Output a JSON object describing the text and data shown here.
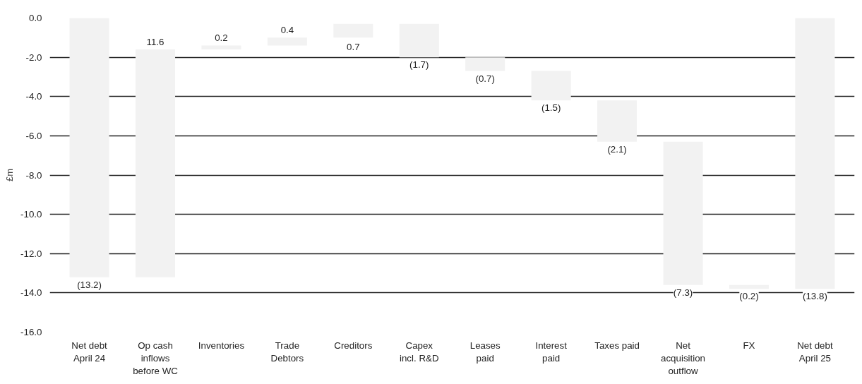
{
  "chart_data": {
    "type": "bar",
    "ylabel": "£m",
    "categories": [
      "Net debt April 24",
      "Op cash inflows before WC",
      "Inventories",
      "Trade Debtors",
      "Creditors",
      "Capex incl. R&D",
      "Leases paid",
      "Interest paid",
      "Taxes paid",
      "Net acquisition outflow",
      "FX",
      "Net debt April 25"
    ],
    "values": [
      -13.2,
      11.6,
      0.2,
      0.4,
      0.7,
      -1.7,
      -0.7,
      -1.5,
      -2.1,
      -7.3,
      -0.2,
      -13.8
    ],
    "base": [
      0,
      -13.2,
      -1.6,
      -1.4,
      -1.0,
      -0.3,
      -2.0,
      -2.7,
      -4.2,
      -6.3,
      -13.6,
      0
    ],
    "value_labels": [
      "(13.2)",
      "11.6",
      "0.2",
      "0.4",
      "0.7",
      "(1.7)",
      "(0.7)",
      "(1.5)",
      "(2.1)",
      "(7.3)",
      "(0.2)",
      "(13.8)"
    ],
    "color": "#f2f2f2",
    "ylim": [
      -16,
      0
    ],
    "yticks": [
      {
        "value": 0,
        "label": "0.0"
      },
      {
        "value": -2,
        "label": "-2.0"
      },
      {
        "value": -4,
        "label": "-4.0"
      },
      {
        "value": -6,
        "label": "-6.0"
      },
      {
        "value": -8,
        "label": "-8.0"
      },
      {
        "value": -10,
        "label": "-10.0"
      },
      {
        "value": -12,
        "label": "-12.0"
      },
      {
        "value": -14,
        "label": "-14.0"
      },
      {
        "value": -16,
        "label": "-16.0"
      }
    ],
    "grid": "y"
  }
}
